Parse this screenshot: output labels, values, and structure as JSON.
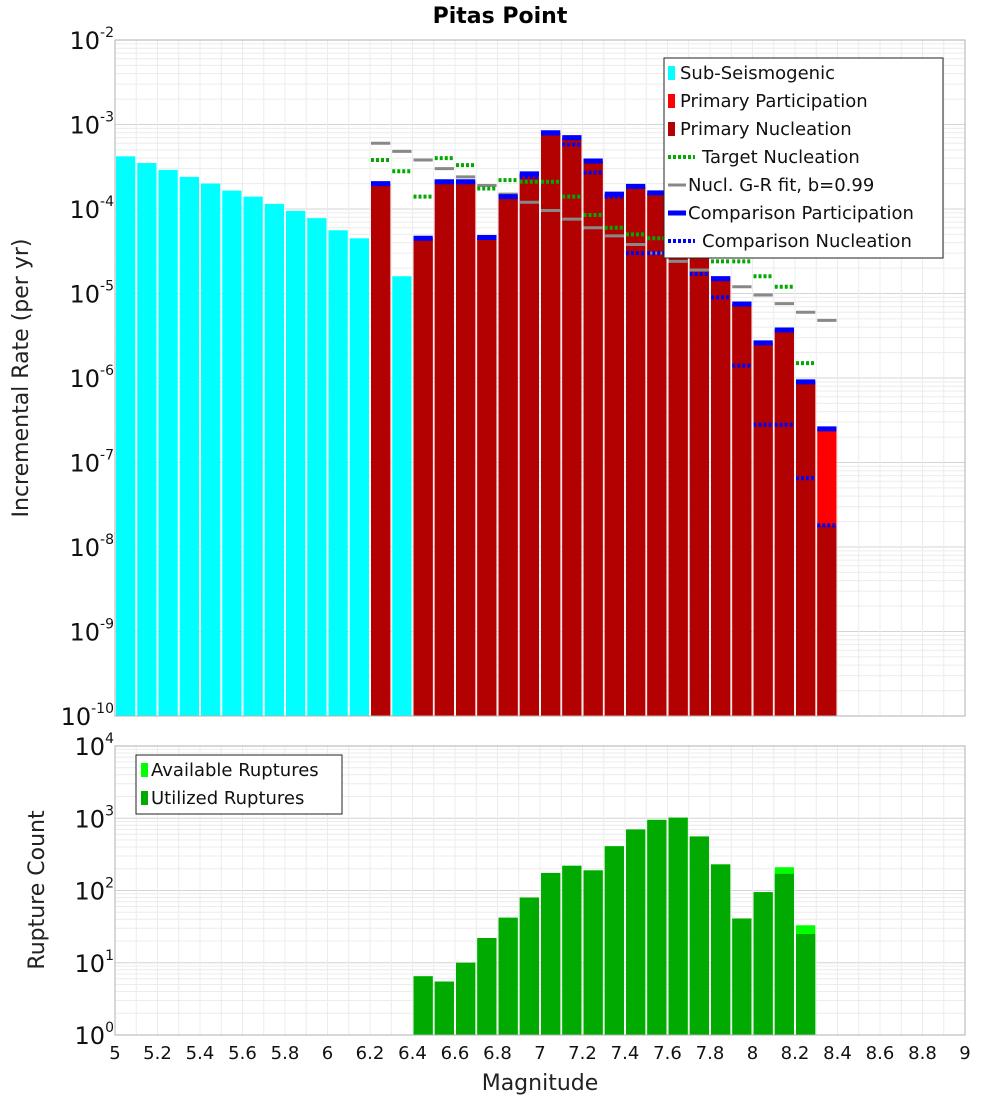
{
  "chart_data": [
    {
      "type": "bar",
      "title": "Pitas Point",
      "xlabel": "Magnitude",
      "ylabel": "Incremental Rate (per yr)",
      "xlim": [
        5,
        9
      ],
      "ylim": [
        1e-10,
        0.01
      ],
      "yscale": "log",
      "y_ticks": [
        {
          "base": "10",
          "exp": "-10",
          "value": 1e-10
        },
        {
          "base": "10",
          "exp": "-9",
          "value": 1e-09
        },
        {
          "base": "10",
          "exp": "-8",
          "value": 1e-08
        },
        {
          "base": "10",
          "exp": "-7",
          "value": 1e-07
        },
        {
          "base": "10",
          "exp": "-6",
          "value": 1e-06
        },
        {
          "base": "10",
          "exp": "-5",
          "value": 1e-05
        },
        {
          "base": "10",
          "exp": "-4",
          "value": 0.0001
        },
        {
          "base": "10",
          "exp": "-3",
          "value": 0.001
        },
        {
          "base": "10",
          "exp": "-2",
          "value": 0.01
        }
      ],
      "bin_width": 0.1,
      "legend_position": "top-right",
      "legend": [
        {
          "label": "Sub-Seismogenic",
          "color": "#00ffff",
          "style": "box"
        },
        {
          "label": "Primary Participation",
          "color": "#ff0000",
          "style": "box"
        },
        {
          "label": "Primary Nucleation",
          "color": "#b30000",
          "style": "box"
        },
        {
          "label": "Target Nucleation",
          "color": "#00aa00",
          "style": "dotted"
        },
        {
          "label": "Nucl. G-R fit, b=0.99",
          "color": "#888888",
          "style": "line"
        },
        {
          "label": "Comparison Participation",
          "color": "#0000ff",
          "style": "thick"
        },
        {
          "label": "Comparison Nucleation",
          "color": "#0000ff",
          "style": "dotted"
        }
      ],
      "series": [
        {
          "name": "Sub-Seismogenic",
          "color": "#00ffff",
          "x": [
            5.05,
            5.15,
            5.25,
            5.35,
            5.45,
            5.55,
            5.65,
            5.75,
            5.85,
            5.95,
            6.05,
            6.15,
            6.35
          ],
          "values": [
            0.00042,
            0.00035,
            0.00029,
            0.00024,
            0.0002,
            0.000165,
            0.00014,
            0.000115,
            9.5e-05,
            7.8e-05,
            5.6e-05,
            4.5e-05,
            1.6e-05
          ]
        },
        {
          "name": "Primary Participation",
          "color": "#ff0000",
          "x": [
            6.25,
            6.45,
            6.55,
            6.65,
            6.75,
            6.85,
            6.95,
            7.05,
            7.15,
            7.25,
            7.35,
            7.45,
            7.55,
            7.65,
            7.75,
            7.85,
            7.95,
            8.05,
            8.15,
            8.25,
            8.35
          ],
          "values": [
            0.0002,
            4.5e-05,
            0.00021,
            0.00021,
            4.6e-05,
            0.00014,
            0.00026,
            0.0008,
            0.0007,
            0.00037,
            0.00015,
            0.000185,
            0.000155,
            6e-05,
            3.6e-05,
            1.5e-05,
            7.5e-06,
            2.6e-06,
            3.7e-06,
            9e-07,
            2.5e-07
          ]
        },
        {
          "name": "Primary Nucleation",
          "color": "#b30000",
          "x": [
            6.25,
            6.45,
            6.55,
            6.65,
            6.75,
            6.85,
            6.95,
            7.05,
            7.15,
            7.25,
            7.35,
            7.45,
            7.55,
            7.65,
            7.75,
            7.85,
            7.95,
            8.05,
            8.15,
            8.25,
            8.35
          ],
          "values": [
            0.0002,
            4.5e-05,
            0.00021,
            0.00021,
            4.6e-05,
            0.00014,
            0.00026,
            0.0008,
            0.0007,
            0.00037,
            0.00015,
            0.000185,
            0.000155,
            6e-05,
            3.6e-05,
            1.5e-05,
            7.5e-06,
            2.6e-06,
            3.7e-06,
            9e-07,
            1.8e-08
          ]
        },
        {
          "name": "Target Nucleation",
          "color": "#00aa00",
          "x": [
            6.25,
            6.35,
            6.45,
            6.55,
            6.65,
            6.75,
            6.85,
            6.95,
            7.05,
            7.15,
            7.25,
            7.35,
            7.45,
            7.55,
            7.65,
            7.75,
            7.85,
            7.95,
            8.05,
            8.15,
            8.25
          ],
          "values": [
            0.00038,
            0.00028,
            0.00014,
            0.0004,
            0.00033,
            0.000175,
            0.00022,
            0.00021,
            0.00021,
            0.00014,
            8.5e-05,
            6e-05,
            5e-05,
            4.5e-05,
            4e-05,
            3e-05,
            2.4e-05,
            2.4e-05,
            1.6e-05,
            1.2e-05,
            1.5e-06
          ]
        },
        {
          "name": "Nucl. G-R fit, b=0.99",
          "color": "#888888",
          "x": [
            6.25,
            6.35,
            6.45,
            6.55,
            6.65,
            6.75,
            6.85,
            6.95,
            7.05,
            7.15,
            7.25,
            7.35,
            7.45,
            7.55,
            7.65,
            7.75,
            7.85,
            7.95,
            8.05,
            8.15,
            8.25,
            8.35
          ],
          "values": [
            0.0006,
            0.00048,
            0.00038,
            0.0003,
            0.00024,
            0.00019,
            0.00015,
            0.00012,
            9.6e-05,
            7.6e-05,
            6e-05,
            4.8e-05,
            3.8e-05,
            3e-05,
            2.4e-05,
            1.9e-05,
            1.5e-05,
            1.2e-05,
            9.6e-06,
            7.6e-06,
            6e-06,
            4.8e-06
          ]
        },
        {
          "name": "Comparison Participation",
          "color": "#0000ff",
          "x": [
            6.25,
            6.45,
            6.55,
            6.65,
            6.75,
            6.85,
            6.95,
            7.05,
            7.15,
            7.25,
            7.35,
            7.45,
            7.55,
            7.65,
            7.75,
            7.85,
            7.95,
            8.05,
            8.15,
            8.25,
            8.35
          ],
          "values": [
            0.0002,
            4.5e-05,
            0.00021,
            0.00021,
            4.6e-05,
            0.00014,
            0.00026,
            0.0008,
            0.0007,
            0.00037,
            0.00015,
            0.000185,
            0.000155,
            6e-05,
            3.6e-05,
            1.5e-05,
            7.5e-06,
            2.6e-06,
            3.7e-06,
            9e-07,
            2.5e-07
          ]
        },
        {
          "name": "Comparison Nucleation",
          "color": "#0000ff",
          "x": [
            6.25,
            6.45,
            6.55,
            6.65,
            6.75,
            6.85,
            6.95,
            7.05,
            7.15,
            7.25,
            7.35,
            7.45,
            7.55,
            7.65,
            7.75,
            7.85,
            7.95,
            8.05,
            8.15,
            8.25,
            8.35
          ],
          "values": [
            0.0002,
            4.5e-05,
            0.00021,
            0.00021,
            4.6e-05,
            0.00014,
            0.00024,
            0.00078,
            0.00058,
            0.00027,
            0.00014,
            3e-05,
            3e-05,
            3e-05,
            1.7e-05,
            9e-06,
            1.4e-06,
            2.8e-07,
            2.8e-07,
            6.5e-08,
            1.8e-08
          ]
        }
      ]
    },
    {
      "type": "bar",
      "xlabel": "Magnitude",
      "ylabel": "Rupture Count",
      "xlim": [
        5,
        9
      ],
      "ylim": [
        1,
        10000
      ],
      "yscale": "log",
      "y_ticks": [
        {
          "base": "10",
          "exp": "0",
          "value": 1
        },
        {
          "base": "10",
          "exp": "1",
          "value": 10
        },
        {
          "base": "10",
          "exp": "2",
          "value": 100
        },
        {
          "base": "10",
          "exp": "3",
          "value": 1000
        },
        {
          "base": "10",
          "exp": "4",
          "value": 10000
        }
      ],
      "x_ticks": [
        "5",
        "5.2",
        "5.4",
        "5.6",
        "5.8",
        "6",
        "6.2",
        "6.4",
        "6.6",
        "6.8",
        "7",
        "7.2",
        "7.4",
        "7.6",
        "7.8",
        "8",
        "8.2",
        "8.4",
        "8.6",
        "8.8",
        "9"
      ],
      "bin_width": 0.1,
      "legend_position": "top-left",
      "legend": [
        {
          "label": "Available Ruptures",
          "color": "#00ff00",
          "style": "box"
        },
        {
          "label": "Utilized Ruptures",
          "color": "#00aa00",
          "style": "box"
        }
      ],
      "series": [
        {
          "name": "Available Ruptures",
          "color": "#00ff00",
          "x": [
            6.45,
            6.55,
            6.65,
            6.75,
            6.85,
            6.95,
            7.05,
            7.15,
            7.25,
            7.35,
            7.45,
            7.55,
            7.65,
            7.75,
            7.85,
            7.95,
            8.05,
            8.15,
            8.25
          ],
          "values": [
            6.5,
            5.5,
            10,
            22,
            42,
            80,
            175,
            220,
            190,
            410,
            700,
            950,
            1020,
            560,
            230,
            41,
            95,
            210,
            33
          ]
        },
        {
          "name": "Utilized Ruptures",
          "color": "#00aa00",
          "x": [
            6.45,
            6.55,
            6.65,
            6.75,
            6.85,
            6.95,
            7.05,
            7.15,
            7.25,
            7.35,
            7.45,
            7.55,
            7.65,
            7.75,
            7.85,
            7.95,
            8.05,
            8.15,
            8.25
          ],
          "values": [
            6.5,
            5.5,
            10,
            22,
            42,
            80,
            175,
            220,
            190,
            410,
            700,
            950,
            1020,
            560,
            230,
            41,
            95,
            170,
            25
          ]
        }
      ]
    }
  ]
}
